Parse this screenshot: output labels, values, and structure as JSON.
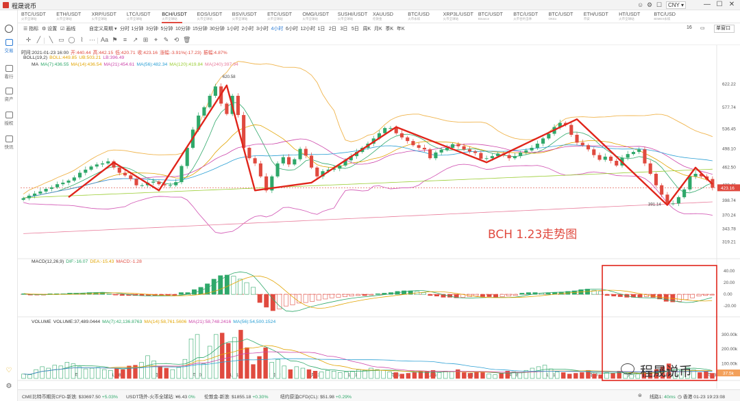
{
  "app": {
    "title": "程晟说币",
    "currency": "CNY ▾"
  },
  "window_controls": [
    "—",
    "☐",
    "✕"
  ],
  "title_icons": [
    "☺",
    "⚙",
    "☐"
  ],
  "symbols": [
    {
      "name": "BTC/USDT",
      "sub": "火币全球站",
      "active": false
    },
    {
      "name": "ETH/USDT",
      "sub": "火币全球站",
      "active": false
    },
    {
      "name": "XRP/USDT",
      "sub": "火币全球站",
      "active": false
    },
    {
      "name": "LTC/USDT",
      "sub": "火币全球站",
      "active": false
    },
    {
      "name": "BCH/USDT",
      "sub": "火币全球站",
      "active": true
    },
    {
      "name": "EOS/USDT",
      "sub": "火币全球站",
      "active": false
    },
    {
      "name": "BSV/USDT",
      "sub": "火币全球站",
      "active": false
    },
    {
      "name": "ETC/USDT",
      "sub": "火币全球站",
      "active": false
    },
    {
      "name": "OMG/USDT",
      "sub": "火币全球站",
      "active": false
    },
    {
      "name": "SUSHI/USDT",
      "sub": "火币全球站",
      "active": false
    },
    {
      "name": "XAUUSD",
      "sub": "伦敦金",
      "active": false
    },
    {
      "name": "BTC/USD",
      "sub": "火币永续",
      "active": false
    },
    {
      "name": "XRP3L/USDT",
      "sub": "火币全球站",
      "active": false
    },
    {
      "name": "BTC/USDT",
      "sub": "Binance",
      "active": false
    },
    {
      "name": "BTC/USDT",
      "sub": "火币合约当季",
      "active": false
    },
    {
      "name": "BTC/USDT",
      "sub": "OKEx",
      "active": false
    },
    {
      "name": "ETH/USDT",
      "sub": "币安",
      "active": false
    },
    {
      "name": "HT/USDT",
      "sub": "火币全球站",
      "active": false
    },
    {
      "name": "BTC/USD",
      "sub": "BitMEX永续",
      "active": false
    }
  ],
  "sidebar": [
    {
      "label": "交易",
      "active": true
    },
    {
      "label": "看行",
      "active": false
    },
    {
      "label": "资产",
      "active": false
    },
    {
      "label": "授权",
      "active": false
    },
    {
      "label": "快讯",
      "active": false
    }
  ],
  "toolbar": {
    "left": [
      "☰ 指标",
      "⚙ 设置",
      "☑ 画线"
    ],
    "custom": "自定义周期 ▾",
    "intervals": [
      "分时",
      "1分钟",
      "3分钟",
      "5分钟",
      "10分钟",
      "15分钟",
      "30分钟",
      "1小时",
      "2小时",
      "3小时",
      "4小时",
      "6小时",
      "12小时",
      "1日",
      "2日",
      "3日",
      "5日",
      "周K",
      "月K",
      "季K",
      "年K"
    ],
    "active_interval": "4小时",
    "right_count": "16",
    "right_dropdown": "单窗口"
  },
  "drawtools": [
    "✛",
    "╱",
    "╲",
    "▭",
    "◯",
    "⌇",
    "⋯",
    "Aa",
    "⚑",
    "≡",
    "↗",
    "⊞",
    "⌖",
    "✎",
    "⟲",
    "🗑"
  ],
  "info": {
    "ohlc": [
      {
        "text": "时间:2021-01-23 16:00",
        "color": "#333333"
      },
      {
        "text": "开:440.44",
        "color": "#e04a3f"
      },
      {
        "text": "高:442.15",
        "color": "#e04a3f"
      },
      {
        "text": "低:420.71",
        "color": "#e04a3f"
      },
      {
        "text": "收:423.16",
        "color": "#e04a3f"
      },
      {
        "text": "涨幅:-3.91%(-17.23)",
        "color": "#e04a3f"
      },
      {
        "text": "振幅:4.87%",
        "color": "#e04a3f"
      }
    ],
    "boll": [
      {
        "text": "BOLL(19,2)",
        "color": "#333333"
      },
      {
        "text": "BOLL:449.85",
        "color": "#e2a400"
      },
      {
        "text": "UB:503.21",
        "color": "#e2a400"
      },
      {
        "text": "LB:396.49",
        "color": "#cc44aa"
      }
    ],
    "ma": [
      {
        "text": "MA",
        "color": "#333333"
      },
      {
        "text": "MA(7):436.55",
        "color": "#2fa86a"
      },
      {
        "text": "MA(14):436.54",
        "color": "#e2a400"
      },
      {
        "text": "MA(21):454.61",
        "color": "#cc44aa"
      },
      {
        "text": "MA(56):482.34",
        "color": "#2a9fd4"
      },
      {
        "text": "MA(120):419.84",
        "color": "#9acd32"
      },
      {
        "text": "MA(240):397.94",
        "color": "#e87b9a"
      }
    ],
    "macd": [
      {
        "text": "MACD(12,26,9)",
        "color": "#333333"
      },
      {
        "text": "DIF:-16.07",
        "color": "#2fa86a"
      },
      {
        "text": "DEA:-15.43",
        "color": "#e2a400"
      },
      {
        "text": "MACD:-1.28",
        "color": "#e04a3f"
      }
    ],
    "volume": [
      {
        "text": "VOLUME",
        "color": "#333333"
      },
      {
        "text": "VOLUME:37,489.0444",
        "color": "#333333"
      },
      {
        "text": "MA(7):42,136.8763",
        "color": "#2fa86a"
      },
      {
        "text": "MA(14):58,761.5606",
        "color": "#e2a400"
      },
      {
        "text": "MA(21):58,748.2416",
        "color": "#cc44aa"
      },
      {
        "text": "MA(56):54,500.1524",
        "color": "#2a9fd4"
      }
    ]
  },
  "annotation": {
    "text": "BCH 1.23走势图",
    "color": "#e04a3f"
  },
  "watermark": "程晟说币",
  "chart_data": {
    "type": "candlestick",
    "price_axis": [
      622.22,
      577.74,
      536.45,
      498.1,
      462.5,
      428.46,
      398.74,
      370.24,
      343.78,
      319.21
    ],
    "price_range": [
      300,
      650
    ],
    "last_price": "423.16",
    "high_label": "620.58",
    "low_label": "391.14",
    "macd_axis": [
      40.0,
      20.0,
      0.0,
      -20.0
    ],
    "macd_range": [
      -35,
      47
    ],
    "volume_axis": [
      "300.00k",
      "200.00k",
      "100.00k"
    ],
    "volume_last": "37.5k",
    "volume_range": [
      0,
      360000
    ],
    "x_labels": [
      "1月7",
      "1月8",
      "1月9",
      "1月10",
      "1月11",
      "1月12",
      "1月13",
      "1月14",
      "1月15",
      "1月16",
      "1月17",
      "1月18",
      "1月19",
      "1月20",
      "1月21",
      "1月22",
      "1月23"
    ],
    "open": [
      400,
      403,
      408,
      412,
      416,
      421,
      424,
      430,
      433,
      437,
      443,
      452,
      458,
      464,
      468,
      470,
      474,
      462,
      452,
      447,
      440,
      428,
      428,
      433,
      435,
      430,
      428,
      428,
      434,
      465,
      500,
      535,
      562,
      578,
      600,
      618,
      585,
      565,
      600,
      563,
      500,
      480,
      470,
      445,
      418,
      445,
      470,
      482,
      468,
      478,
      498,
      485,
      462,
      445,
      455,
      458,
      460,
      466,
      476,
      484,
      492,
      500,
      508,
      518,
      528,
      538,
      538,
      528,
      520,
      513,
      505,
      500,
      497,
      480,
      491,
      496,
      500,
      507,
      503,
      497,
      493,
      490,
      479,
      480,
      484,
      489,
      486,
      480,
      484,
      491,
      495,
      500,
      508,
      518,
      527,
      540,
      548,
      544,
      525,
      510,
      505,
      497,
      486,
      477,
      483,
      475,
      466,
      481,
      488,
      492,
      497,
      470,
      450,
      428,
      410,
      393,
      393,
      405,
      420,
      445,
      450,
      445,
      440
    ],
    "close": [
      403,
      408,
      412,
      416,
      421,
      424,
      430,
      433,
      437,
      443,
      452,
      458,
      464,
      468,
      470,
      474,
      462,
      452,
      447,
      440,
      428,
      428,
      433,
      435,
      430,
      428,
      428,
      434,
      465,
      500,
      535,
      562,
      578,
      600,
      618,
      585,
      565,
      600,
      563,
      500,
      480,
      470,
      445,
      418,
      445,
      470,
      482,
      468,
      478,
      498,
      485,
      462,
      445,
      455,
      458,
      460,
      466,
      476,
      484,
      492,
      500,
      508,
      518,
      528,
      538,
      538,
      528,
      520,
      513,
      505,
      500,
      497,
      480,
      491,
      496,
      500,
      507,
      503,
      497,
      493,
      490,
      479,
      480,
      484,
      489,
      486,
      480,
      484,
      491,
      495,
      500,
      508,
      518,
      527,
      540,
      548,
      544,
      525,
      510,
      505,
      497,
      486,
      477,
      483,
      475,
      466,
      481,
      488,
      492,
      497,
      470,
      450,
      428,
      410,
      393,
      393,
      405,
      420,
      445,
      450,
      445,
      440,
      423.16
    ],
    "macd_hist": [
      1,
      -1,
      -1,
      -1,
      1,
      1,
      1,
      2,
      2,
      2,
      3,
      3,
      3,
      1,
      -1,
      -2,
      -2,
      -2,
      -2,
      -2,
      -2,
      -2,
      -2,
      -2,
      3,
      3,
      8,
      12,
      18,
      26,
      32,
      33,
      31,
      26,
      20,
      12,
      -14,
      -22,
      -28,
      -25,
      -20,
      -18,
      -15,
      -14,
      -12,
      -10,
      -8,
      -6,
      -5,
      -4,
      -3,
      -2,
      -2,
      -1,
      1,
      2,
      3,
      5,
      6,
      6,
      5,
      3,
      -2,
      -3,
      -5,
      -5,
      -6,
      -5,
      -4,
      -3,
      -4,
      -4,
      -5,
      -4,
      -3,
      -2,
      2,
      3,
      3,
      2,
      2,
      3,
      4,
      5,
      6,
      8,
      9,
      7,
      5,
      -2,
      -3,
      -4,
      -5,
      -5,
      -5,
      -4,
      -5,
      -8,
      -12,
      -13,
      -12,
      -9,
      -6,
      -3,
      -2,
      -1
    ],
    "volume_thousands": [
      30,
      25,
      60,
      80,
      70,
      90,
      85,
      110,
      100,
      80,
      65,
      70,
      75,
      60,
      55,
      70,
      60,
      85,
      90,
      110,
      155,
      120,
      85,
      70,
      60,
      75,
      130,
      270,
      300,
      100,
      220,
      300,
      310,
      240,
      280,
      330,
      210,
      95,
      150,
      210,
      110,
      130,
      85,
      60,
      80,
      70,
      60,
      50,
      45,
      55,
      50,
      40,
      45,
      50,
      60,
      55,
      70,
      60,
      55,
      45,
      40,
      30,
      35,
      40,
      50,
      45,
      55,
      40,
      50,
      45,
      60,
      40,
      35,
      45,
      40,
      30,
      25,
      35,
      50,
      45,
      40,
      55,
      70,
      80,
      90,
      65,
      45,
      40,
      30,
      35,
      40,
      55,
      30,
      25,
      40,
      35,
      50,
      30,
      25,
      30,
      40,
      45,
      60,
      80,
      100,
      60,
      55,
      75,
      60,
      40,
      50,
      35
    ]
  }
}
